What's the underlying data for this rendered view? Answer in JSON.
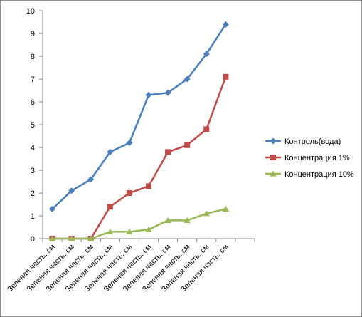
{
  "chart_data": {
    "type": "line",
    "categories": [
      "Зеленая часть, см",
      "Зеленая часть, см",
      "Зеленая часть, см",
      "Зеленая часть, см",
      "Зеленая часть, см",
      "Зеленая часть, см",
      "Зеленая часть, см",
      "Зеленая часть, см",
      "Зеленая часть, см",
      "Зеленая часть, см"
    ],
    "series": [
      {
        "name": "Контроль(вода)",
        "color": "#4a7ebb",
        "marker": "diamond",
        "values": [
          1.3,
          2.1,
          2.6,
          3.8,
          4.2,
          6.3,
          6.4,
          7.0,
          8.1,
          9.4
        ]
      },
      {
        "name": "Концентрация 1%",
        "color": "#be4b48",
        "marker": "square",
        "values": [
          0,
          0,
          0,
          1.4,
          2.0,
          2.3,
          3.8,
          4.1,
          4.8,
          7.1
        ]
      },
      {
        "name": "Концентрация 10%",
        "color": "#98b954",
        "marker": "triangle",
        "values": [
          0,
          0,
          0,
          0.3,
          0.3,
          0.4,
          0.8,
          0.8,
          1.1,
          1.3
        ]
      }
    ],
    "ylim": [
      0,
      10
    ],
    "yticks": [
      "0",
      "1",
      "2",
      "3",
      "4",
      "5",
      "6",
      "7",
      "8",
      "9",
      "10"
    ],
    "xlabel": "",
    "ylabel": "",
    "title": "",
    "grid": false,
    "legend_position": "right"
  }
}
